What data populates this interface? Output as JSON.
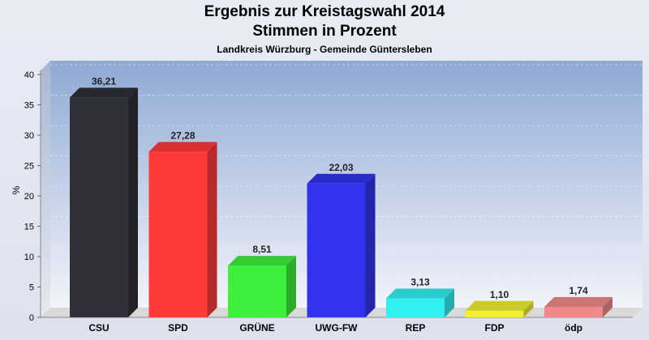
{
  "chart_data": {
    "type": "bar",
    "title": "Ergebnis zur Kreistagswahl 2014",
    "subtitle": "Stimmen in Prozent",
    "subsubtitle": "Landkreis Würzburg - Gemeinde Güntersleben",
    "ylabel": "%",
    "xlabel": "",
    "ylim": [
      0,
      40
    ],
    "yticks": [
      0,
      5,
      10,
      15,
      20,
      25,
      30,
      35,
      40
    ],
    "categories": [
      "CSU",
      "SPD",
      "GRÜNE",
      "UWG-FW",
      "REP",
      "FDP",
      "ödp"
    ],
    "values": [
      36.21,
      27.28,
      8.51,
      22.03,
      3.13,
      1.1,
      1.74
    ],
    "value_labels": [
      "36,21",
      "27,28",
      "8,51",
      "22,03",
      "3,13",
      "1,10",
      "1,74"
    ],
    "colors": [
      "#2f3038",
      "#ff3a3a",
      "#3cf03c",
      "#3333ee",
      "#33f0f0",
      "#f0f030",
      "#f08a8a"
    ],
    "grid": true
  }
}
